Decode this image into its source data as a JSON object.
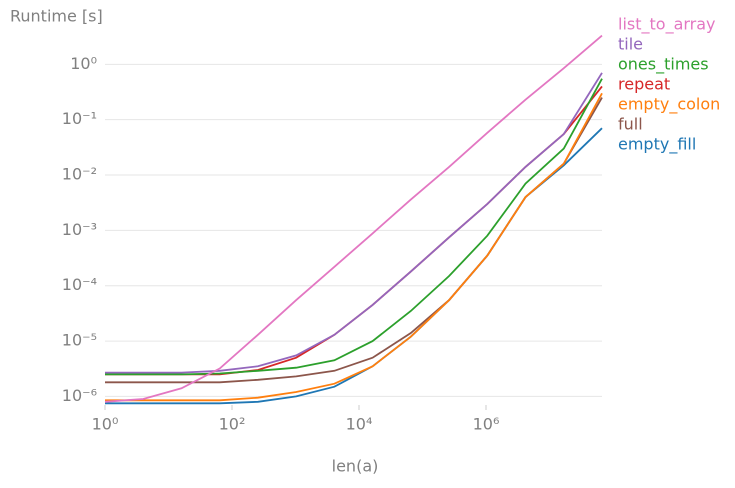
{
  "chart_data": {
    "type": "line",
    "y_label": "Runtime [s]",
    "x_label": "len(a)",
    "x": [
      1,
      4,
      16,
      64,
      256,
      1024,
      4096,
      16384,
      65536,
      262144,
      1048576,
      4194304,
      16777216,
      67108864
    ],
    "xscale": "log",
    "yscale": "log",
    "grid": "y",
    "xlim": [
      1,
      67108864
    ],
    "xticks": [
      {
        "value": 1,
        "label": "10⁰"
      },
      {
        "value": 100,
        "label": "10²"
      },
      {
        "value": 10000,
        "label": "10⁴"
      },
      {
        "value": 1000000,
        "label": "10⁶"
      }
    ],
    "ylim": [
      7e-07,
      4
    ],
    "yticks": [
      {
        "value": 1e-06,
        "label": "10⁻⁶"
      },
      {
        "value": 1e-05,
        "label": "10⁻⁵"
      },
      {
        "value": 0.0001,
        "label": "10⁻⁴"
      },
      {
        "value": 0.001,
        "label": "10⁻³"
      },
      {
        "value": 0.01,
        "label": "10⁻²"
      },
      {
        "value": 0.1,
        "label": "10⁻¹"
      },
      {
        "value": 1,
        "label": "10⁰"
      }
    ],
    "legend": "outside-right",
    "series": [
      {
        "name": "list_to_array",
        "color": "#e377c2",
        "values": [
          8e-07,
          9e-07,
          1.4e-06,
          3.2e-06,
          1.3e-05,
          5.5e-05,
          0.00022,
          0.00088,
          0.0036,
          0.014,
          0.058,
          0.23,
          0.85,
          3.3
        ]
      },
      {
        "name": "tile",
        "color": "#9467bd",
        "values": [
          2.7e-06,
          2.7e-06,
          2.7e-06,
          2.9e-06,
          3.5e-06,
          5.5e-06,
          1.3e-05,
          4.5e-05,
          0.00018,
          0.00075,
          0.003,
          0.014,
          0.055,
          0.7
        ]
      },
      {
        "name": "ones_times",
        "color": "#2ca02c",
        "values": [
          2.5e-06,
          2.5e-06,
          2.5e-06,
          2.6e-06,
          2.9e-06,
          3.3e-06,
          4.5e-06,
          1e-05,
          3.5e-05,
          0.00015,
          0.0008,
          0.007,
          0.03,
          0.55
        ]
      },
      {
        "name": "repeat",
        "color": "#d62728",
        "values": [
          2.5e-06,
          2.5e-06,
          2.5e-06,
          2.5e-06,
          3e-06,
          5e-06,
          1.3e-05,
          4.5e-05,
          0.00018,
          0.00075,
          0.003,
          0.014,
          0.055,
          0.4
        ]
      },
      {
        "name": "empty_colon",
        "color": "#ff7f0e",
        "values": [
          8.5e-07,
          8.5e-07,
          8.5e-07,
          8.5e-07,
          9.5e-07,
          1.2e-06,
          1.7e-06,
          3.5e-06,
          1.2e-05,
          5.5e-05,
          0.00035,
          0.004,
          0.016,
          0.3
        ]
      },
      {
        "name": "full",
        "color": "#8c564b",
        "values": [
          1.8e-06,
          1.8e-06,
          1.8e-06,
          1.8e-06,
          2e-06,
          2.3e-06,
          2.9e-06,
          5e-06,
          1.4e-05,
          5.5e-05,
          0.00035,
          0.004,
          0.016,
          0.25
        ]
      },
      {
        "name": "empty_fill",
        "color": "#1f77b4",
        "values": [
          7.5e-07,
          7.5e-07,
          7.5e-07,
          7.5e-07,
          8e-07,
          1e-06,
          1.5e-06,
          3.5e-06,
          1.2e-05,
          5.5e-05,
          0.00035,
          0.004,
          0.015,
          0.07
        ]
      }
    ]
  }
}
